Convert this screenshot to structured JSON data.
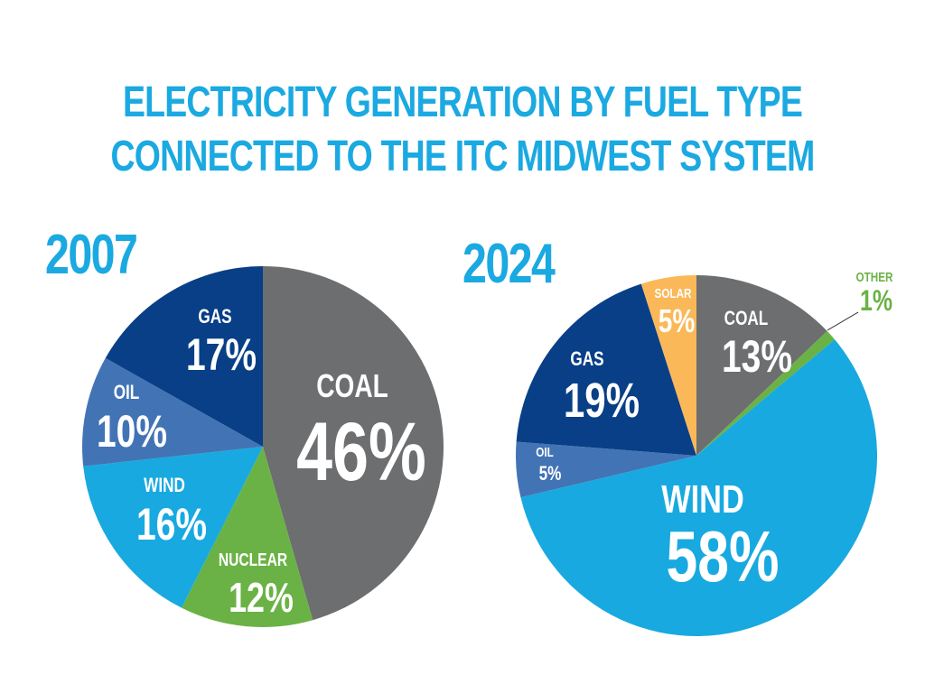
{
  "title": {
    "line1": "ELECTRICITY GENERATION BY FUEL TYPE",
    "line2": "CONNECTED TO THE ITC MIDWEST SYSTEM"
  },
  "chart_data": [
    {
      "type": "pie",
      "title": "2007",
      "slices": [
        {
          "label": "COAL",
          "value": 46,
          "value_text": "46%",
          "color": "#6d6e70"
        },
        {
          "label": "NUCLEAR",
          "value": 12,
          "value_text": "12%",
          "color": "#6ab245"
        },
        {
          "label": "WIND",
          "value": 16,
          "value_text": "16%",
          "color": "#18a9e0"
        },
        {
          "label": "OIL",
          "value": 10,
          "value_text": "10%",
          "color": "#4274b5"
        },
        {
          "label": "GAS",
          "value": 17,
          "value_text": "17%",
          "color": "#083f86"
        }
      ]
    },
    {
      "type": "pie",
      "title": "2024",
      "slices": [
        {
          "label": "COAL",
          "value": 13,
          "value_text": "13%",
          "color": "#6d6e70"
        },
        {
          "label": "OTHER",
          "value": 1,
          "value_text": "1%",
          "color": "#6ab245"
        },
        {
          "label": "WIND",
          "value": 58,
          "value_text": "58%",
          "color": "#18a9e0"
        },
        {
          "label": "OIL",
          "value": 5,
          "value_text": "5%",
          "color": "#4274b5"
        },
        {
          "label": "GAS",
          "value": 19,
          "value_text": "19%",
          "color": "#083f86"
        },
        {
          "label": "SOLAR",
          "value": 5,
          "value_text": "5%",
          "color": "#fbb858"
        }
      ]
    }
  ]
}
